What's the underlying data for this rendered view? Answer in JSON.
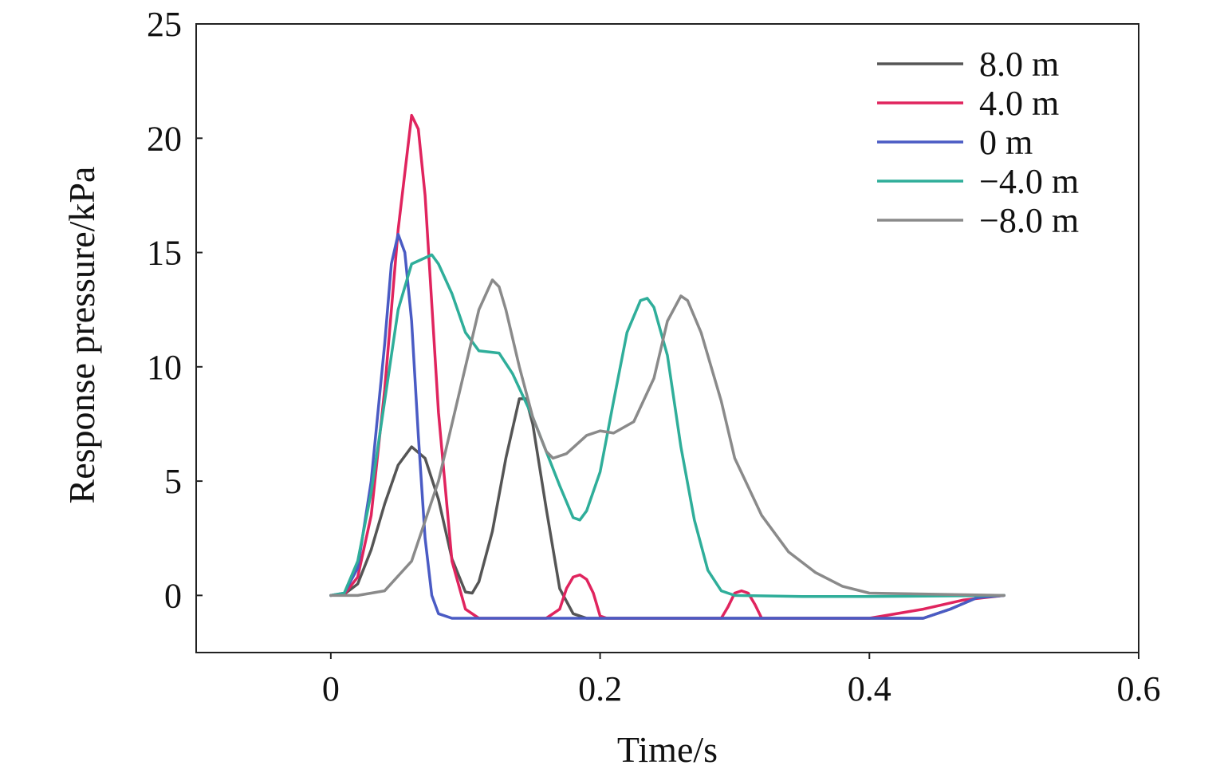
{
  "chart_data": {
    "type": "line",
    "xlabel": "Time/s",
    "ylabel": "Response pressure/kPa",
    "xlim": [
      -0.1,
      0.6
    ],
    "ylim": [
      -2.5,
      25
    ],
    "xticks": [
      0,
      0.2,
      0.4,
      0.6
    ],
    "xtick_labels": [
      "0",
      "0.2",
      "0.4",
      "0.6"
    ],
    "yticks": [
      0,
      5,
      10,
      15,
      20,
      25
    ],
    "ytick_labels": [
      "0",
      "5",
      "10",
      "15",
      "20",
      "25"
    ],
    "grid": false,
    "legend_position": "top-right",
    "series": [
      {
        "name": "8.0 m",
        "color": "#555555",
        "points": [
          [
            0,
            0
          ],
          [
            0.01,
            0.05
          ],
          [
            0.02,
            0.5
          ],
          [
            0.03,
            2.0
          ],
          [
            0.04,
            4.0
          ],
          [
            0.05,
            5.7
          ],
          [
            0.06,
            6.5
          ],
          [
            0.07,
            6.0
          ],
          [
            0.08,
            4.2
          ],
          [
            0.09,
            1.6
          ],
          [
            0.1,
            0.15
          ],
          [
            0.105,
            0.1
          ],
          [
            0.11,
            0.6
          ],
          [
            0.12,
            2.8
          ],
          [
            0.13,
            6.0
          ],
          [
            0.14,
            8.6
          ],
          [
            0.145,
            8.6
          ],
          [
            0.15,
            7.5
          ],
          [
            0.16,
            3.8
          ],
          [
            0.17,
            0.3
          ],
          [
            0.18,
            -0.8
          ],
          [
            0.19,
            -1.0
          ],
          [
            0.3,
            -1.0
          ],
          [
            0.44,
            -1.0
          ],
          [
            0.46,
            -0.6
          ],
          [
            0.48,
            -0.1
          ],
          [
            0.5,
            0
          ]
        ]
      },
      {
        "name": "4.0 m",
        "color": "#e0245e",
        "points": [
          [
            0,
            0
          ],
          [
            0.01,
            0.05
          ],
          [
            0.02,
            0.8
          ],
          [
            0.03,
            3.5
          ],
          [
            0.04,
            9.0
          ],
          [
            0.05,
            16.0
          ],
          [
            0.06,
            21.0
          ],
          [
            0.065,
            20.4
          ],
          [
            0.07,
            17.5
          ],
          [
            0.08,
            8.0
          ],
          [
            0.09,
            1.5
          ],
          [
            0.1,
            -0.6
          ],
          [
            0.11,
            -1.0
          ],
          [
            0.16,
            -1.0
          ],
          [
            0.17,
            -0.6
          ],
          [
            0.175,
            0.3
          ],
          [
            0.18,
            0.8
          ],
          [
            0.185,
            0.9
          ],
          [
            0.19,
            0.7
          ],
          [
            0.195,
            0.1
          ],
          [
            0.2,
            -0.9
          ],
          [
            0.205,
            -1.0
          ],
          [
            0.29,
            -1.0
          ],
          [
            0.295,
            -0.5
          ],
          [
            0.3,
            0.1
          ],
          [
            0.305,
            0.2
          ],
          [
            0.31,
            0.1
          ],
          [
            0.315,
            -0.4
          ],
          [
            0.32,
            -1.0
          ],
          [
            0.4,
            -1.0
          ],
          [
            0.44,
            -0.6
          ],
          [
            0.47,
            -0.2
          ],
          [
            0.5,
            0
          ]
        ]
      },
      {
        "name": "0 m",
        "color": "#4a5bc4",
        "points": [
          [
            0,
            0
          ],
          [
            0.01,
            0.1
          ],
          [
            0.02,
            1.2
          ],
          [
            0.03,
            5.0
          ],
          [
            0.04,
            11.0
          ],
          [
            0.045,
            14.5
          ],
          [
            0.05,
            15.8
          ],
          [
            0.055,
            15.0
          ],
          [
            0.06,
            12.0
          ],
          [
            0.065,
            7.0
          ],
          [
            0.07,
            2.5
          ],
          [
            0.075,
            0.0
          ],
          [
            0.08,
            -0.8
          ],
          [
            0.09,
            -1.0
          ],
          [
            0.3,
            -1.0
          ],
          [
            0.44,
            -1.0
          ],
          [
            0.46,
            -0.6
          ],
          [
            0.48,
            -0.1
          ],
          [
            0.5,
            0
          ]
        ]
      },
      {
        "name": "−4.0 m",
        "color": "#2fae9a",
        "points": [
          [
            0,
            0
          ],
          [
            0.01,
            0.1
          ],
          [
            0.02,
            1.5
          ],
          [
            0.03,
            4.5
          ],
          [
            0.04,
            8.5
          ],
          [
            0.05,
            12.5
          ],
          [
            0.06,
            14.5
          ],
          [
            0.075,
            14.9
          ],
          [
            0.08,
            14.5
          ],
          [
            0.09,
            13.2
          ],
          [
            0.1,
            11.5
          ],
          [
            0.11,
            10.7
          ],
          [
            0.125,
            10.6
          ],
          [
            0.135,
            9.7
          ],
          [
            0.15,
            7.8
          ],
          [
            0.17,
            4.8
          ],
          [
            0.18,
            3.4
          ],
          [
            0.185,
            3.3
          ],
          [
            0.19,
            3.7
          ],
          [
            0.2,
            5.4
          ],
          [
            0.21,
            8.5
          ],
          [
            0.22,
            11.5
          ],
          [
            0.23,
            12.9
          ],
          [
            0.235,
            13.0
          ],
          [
            0.24,
            12.6
          ],
          [
            0.25,
            10.5
          ],
          [
            0.26,
            6.5
          ],
          [
            0.27,
            3.3
          ],
          [
            0.28,
            1.1
          ],
          [
            0.29,
            0.2
          ],
          [
            0.3,
            0.0
          ],
          [
            0.35,
            -0.05
          ],
          [
            0.4,
            -0.05
          ],
          [
            0.5,
            0
          ]
        ]
      },
      {
        "name": "−8.0 m",
        "color": "#8a8a8a",
        "points": [
          [
            0,
            0
          ],
          [
            0.02,
            0.0
          ],
          [
            0.04,
            0.2
          ],
          [
            0.06,
            1.5
          ],
          [
            0.08,
            5.0
          ],
          [
            0.1,
            10.0
          ],
          [
            0.11,
            12.5
          ],
          [
            0.12,
            13.8
          ],
          [
            0.125,
            13.5
          ],
          [
            0.13,
            12.5
          ],
          [
            0.14,
            10.0
          ],
          [
            0.15,
            7.8
          ],
          [
            0.16,
            6.3
          ],
          [
            0.165,
            6.0
          ],
          [
            0.175,
            6.2
          ],
          [
            0.19,
            7.0
          ],
          [
            0.2,
            7.2
          ],
          [
            0.21,
            7.1
          ],
          [
            0.225,
            7.6
          ],
          [
            0.24,
            9.5
          ],
          [
            0.25,
            12.0
          ],
          [
            0.26,
            13.1
          ],
          [
            0.265,
            12.9
          ],
          [
            0.275,
            11.5
          ],
          [
            0.29,
            8.5
          ],
          [
            0.3,
            6.0
          ],
          [
            0.32,
            3.5
          ],
          [
            0.34,
            1.9
          ],
          [
            0.36,
            1.0
          ],
          [
            0.38,
            0.4
          ],
          [
            0.4,
            0.1
          ],
          [
            0.5,
            0
          ]
        ]
      }
    ]
  }
}
